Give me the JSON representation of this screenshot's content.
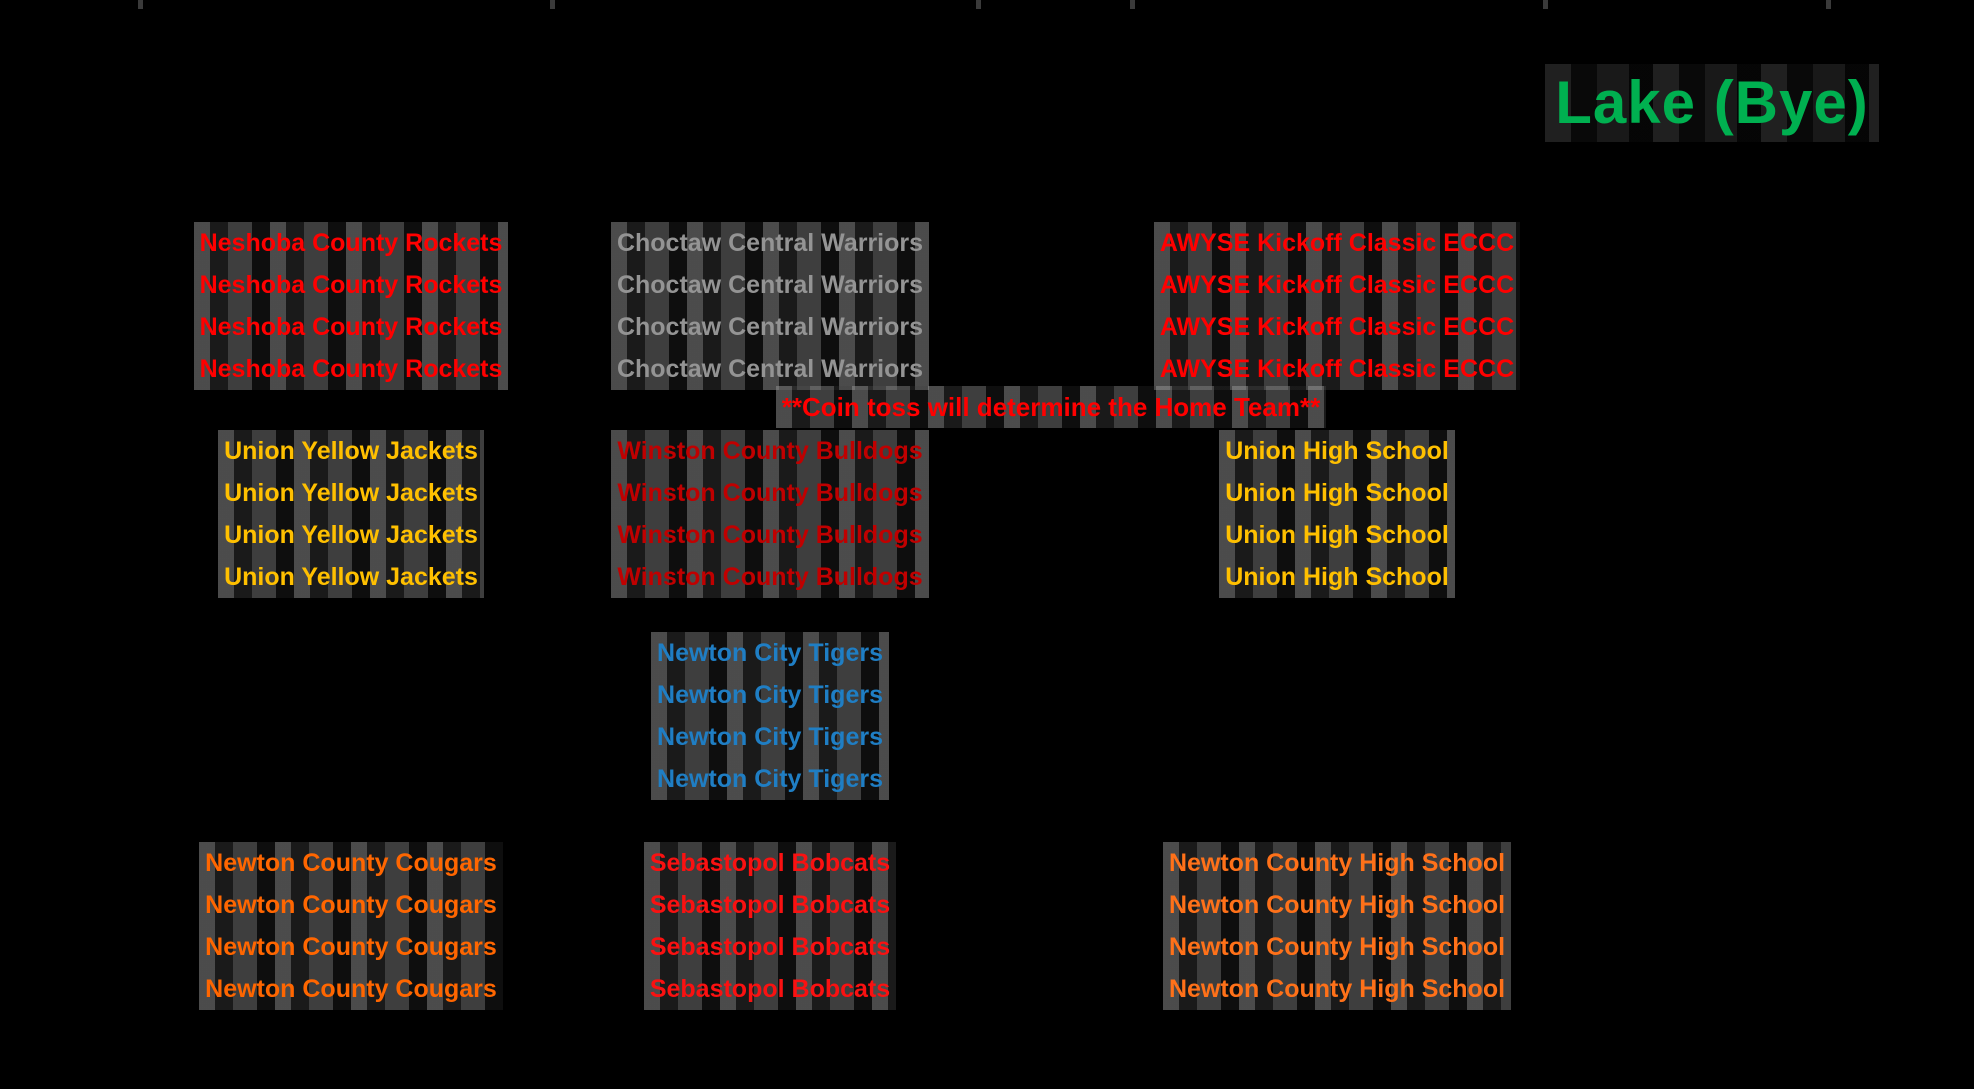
{
  "canvas": {
    "background": "#000000"
  },
  "bye": {
    "label": "Lake (Bye)",
    "color": "#00B050"
  },
  "notice": {
    "label": "**Coin toss will determine the Home Team**",
    "color": "#FF0000"
  },
  "schedule": {
    "rows_per_matchup": 4,
    "matchups": [
      {
        "id": "neshoba-vs-choctaw",
        "away": {
          "label": "Neshoba County Rockets",
          "color": "#FF0000"
        },
        "home": {
          "label": "Choctaw Central Warriors",
          "color": "#949494"
        },
        "location": {
          "label": "AWYSE Kickoff Classic ECCC",
          "color": "#FF0000"
        }
      },
      {
        "id": "union-vs-winston",
        "away": {
          "label": "Union Yellow Jackets",
          "color": "#FFC000"
        },
        "home": {
          "label": "Winston County Bulldogs",
          "color": "#C00000"
        },
        "location": {
          "label": "Union High School",
          "color": "#FFC000"
        }
      },
      {
        "id": "newton-city",
        "home": {
          "label": "Newton City Tigers",
          "color": "#1F7EC4"
        }
      },
      {
        "id": "newton-county-vs-sebastopol",
        "away": {
          "label": "Newton County Cougars",
          "color": "#FF6600"
        },
        "home": {
          "label": "Sebastopol Bobcats",
          "color": "#FA1111"
        },
        "location": {
          "label": "Newton County High School",
          "color": "#FF7119"
        }
      }
    ]
  }
}
